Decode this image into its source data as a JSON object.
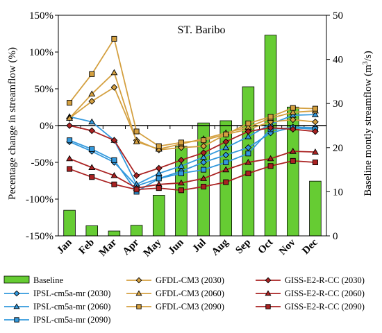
{
  "chart_data": {
    "type": "bar+line",
    "title": "ST. Baribo",
    "ylabel_left": "Pecentage change in streamflow (%)",
    "ylabel_right_main": "Baseline montly streamflow (m",
    "ylabel_right_sup": "3",
    "ylabel_right_end": "/s)",
    "ylim_left": [
      -150,
      150
    ],
    "ylim_right": [
      0,
      50
    ],
    "yticks_left": [
      "150%",
      "100%",
      "50%",
      "0%",
      "-50%",
      "-100%",
      "-150%"
    ],
    "yticks_left_values": [
      150,
      100,
      50,
      0,
      -50,
      -100,
      -150
    ],
    "yticks_right": [
      "50",
      "40",
      "30",
      "20",
      "10",
      "0"
    ],
    "yticks_right_values": [
      50,
      40,
      30,
      20,
      10,
      0
    ],
    "categories": [
      "Jan",
      "Feb",
      "Mar",
      "Apr",
      "May",
      "Jun",
      "Jul",
      "Aug",
      "Sep",
      "Oct",
      "Nov",
      "Dec"
    ],
    "baseline": {
      "name": "Baseline",
      "color": "#66cc33",
      "values": [
        5.8,
        2.3,
        1.1,
        2.4,
        9.2,
        20.3,
        25.6,
        26.1,
        33.8,
        45.5,
        29.2,
        12.4
      ]
    },
    "series": [
      {
        "name": "IPSL-cm5a-mr (2030)",
        "color": "#3399dd",
        "marker": "diamond",
        "values": [
          -22,
          -35,
          -50,
          -82,
          -72,
          -62,
          -50,
          -40,
          -30,
          -10,
          -2,
          -3
        ]
      },
      {
        "name": "IPSL-cm5a-mr (2060)",
        "color": "#3399dd",
        "marker": "triangle",
        "values": [
          12,
          5,
          -20,
          -80,
          -65,
          -55,
          -43,
          -30,
          -15,
          2,
          14,
          15
        ]
      },
      {
        "name": "IPSL-cm5a-mr (2090)",
        "color": "#3399dd",
        "marker": "square",
        "values": [
          -20,
          -32,
          -47,
          -90,
          -72,
          -65,
          -60,
          -50,
          -38,
          -5,
          -3,
          -5
        ]
      },
      {
        "name": "GFDL-CM3 (2030)",
        "color": "#d4a040",
        "marker": "diamond",
        "values": [
          10,
          33,
          52,
          -20,
          -33,
          -30,
          -28,
          -12,
          -5,
          5,
          8,
          5
        ]
      },
      {
        "name": "GFDL-CM3 (2060)",
        "color": "#d4a040",
        "marker": "triangle",
        "values": [
          10,
          43,
          72,
          -22,
          -32,
          -25,
          -18,
          -10,
          -2,
          10,
          18,
          20
        ]
      },
      {
        "name": "GFDL-CM3 (2090)",
        "color": "#d4a040",
        "marker": "square",
        "values": [
          31,
          70,
          118,
          -8,
          -28,
          -23,
          -20,
          -12,
          3,
          12,
          24,
          23
        ]
      },
      {
        "name": "GISS-E2-R-CC (2030)",
        "color": "#aa2222",
        "marker": "diamond",
        "values": [
          0,
          -7,
          -20,
          -68,
          -58,
          -47,
          -37,
          -22,
          -8,
          -3,
          -5,
          -8
        ]
      },
      {
        "name": "GISS-E2-R-CC (2060)",
        "color": "#aa2222",
        "marker": "triangle",
        "values": [
          -45,
          -57,
          -68,
          -85,
          -80,
          -78,
          -72,
          -60,
          -50,
          -45,
          -35,
          -36
        ]
      },
      {
        "name": "GISS-E2-R-CC (2090)",
        "color": "#aa2222",
        "marker": "square",
        "values": [
          -59,
          -70,
          -80,
          -87,
          -85,
          -88,
          -83,
          -77,
          -65,
          -55,
          -48,
          -50
        ]
      }
    ],
    "legend_placement": "bottom",
    "grid": false
  }
}
